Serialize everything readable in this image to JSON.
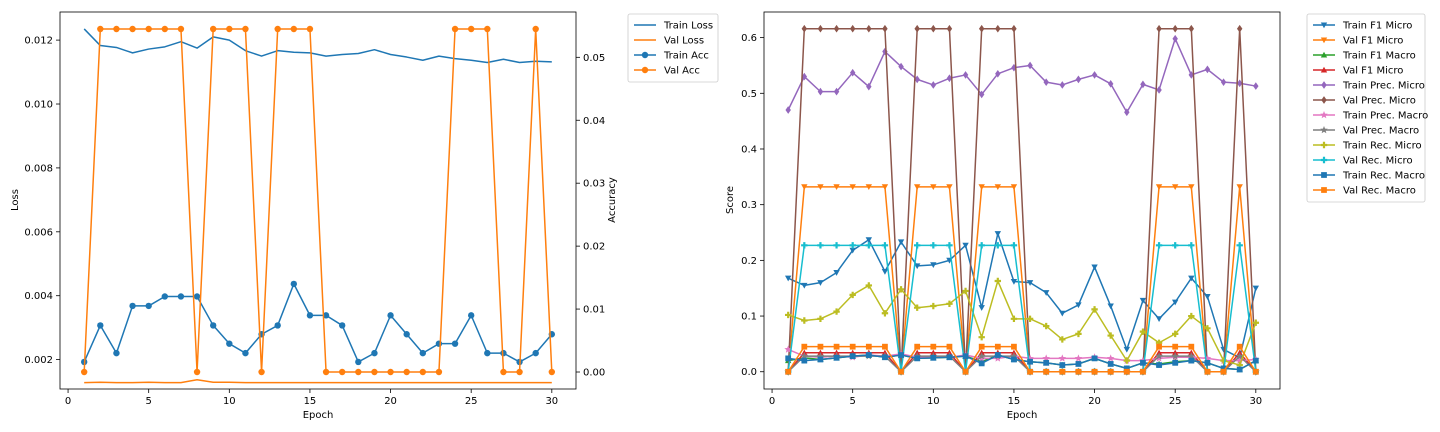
{
  "chart_data": [
    {
      "type": "line",
      "xlabel": "Epoch",
      "ylabel": "Loss",
      "ylabel_right": "Accuracy",
      "xlim": [
        -0.5,
        31.5
      ],
      "ylim": [
        0.00108,
        0.01288
      ],
      "ylim_right": [
        -0.0027,
        0.0572
      ],
      "xticks": [
        0,
        5,
        10,
        15,
        20,
        25,
        30
      ],
      "yticks": [
        0.002,
        0.004,
        0.006,
        0.008,
        0.01,
        0.012
      ],
      "ytick_labels": [
        "0.002",
        "0.004",
        "0.006",
        "0.008",
        "0.010",
        "0.012"
      ],
      "yticks_right": [
        0.0,
        0.01,
        0.02,
        0.03,
        0.04,
        0.05
      ],
      "ytick_labels_right": [
        "0.00",
        "0.01",
        "0.02",
        "0.03",
        "0.04",
        "0.05"
      ],
      "grid": false,
      "legend_placement": "outside-right",
      "x": [
        1,
        2,
        3,
        4,
        5,
        6,
        7,
        8,
        9,
        10,
        11,
        12,
        13,
        14,
        15,
        16,
        17,
        18,
        19,
        20,
        21,
        22,
        23,
        24,
        25,
        26,
        27,
        28,
        29,
        30
      ],
      "series": [
        {
          "name": "Train Loss",
          "axis": "left",
          "color": "#1f77b4",
          "marker": "none",
          "values": [
            0.01235,
            0.01183,
            0.01177,
            0.0116,
            0.01172,
            0.01179,
            0.01195,
            0.01175,
            0.0121,
            0.012,
            0.01167,
            0.0115,
            0.01167,
            0.01162,
            0.0116,
            0.0115,
            0.01155,
            0.01158,
            0.0117,
            0.01155,
            0.01147,
            0.01137,
            0.0115,
            0.01142,
            0.01137,
            0.0113,
            0.0114,
            0.0113,
            0.01134,
            0.01132
          ]
        },
        {
          "name": "Val Loss",
          "axis": "left",
          "color": "#ff7f0e",
          "marker": "none",
          "values": [
            0.00128,
            0.00129,
            0.00128,
            0.00128,
            0.00129,
            0.00128,
            0.00128,
            0.00137,
            0.00129,
            0.00129,
            0.00128,
            0.00128,
            0.00128,
            0.00128,
            0.00128,
            0.00128,
            0.00128,
            0.00128,
            0.00128,
            0.00128,
            0.00128,
            0.00128,
            0.00128,
            0.00128,
            0.00128,
            0.00128,
            0.00128,
            0.00128,
            0.00128,
            0.00128
          ]
        },
        {
          "name": "Train Acc",
          "axis": "right",
          "color": "#1f77b4",
          "marker": "circle",
          "values": [
            0.0016,
            0.0074,
            0.003,
            0.0105,
            0.0105,
            0.012,
            0.012,
            0.012,
            0.0074,
            0.0045,
            0.003,
            0.006,
            0.0074,
            0.014,
            0.009,
            0.009,
            0.0074,
            0.0016,
            0.003,
            0.009,
            0.006,
            0.003,
            0.0045,
            0.0045,
            0.009,
            0.003,
            0.003,
            0.0016,
            0.003,
            0.006
          ]
        },
        {
          "name": "Val Acc",
          "axis": "right",
          "color": "#ff7f0e",
          "marker": "circle",
          "values": [
            0.0,
            0.0545,
            0.0545,
            0.0545,
            0.0545,
            0.0545,
            0.0545,
            0.0,
            0.0545,
            0.0545,
            0.0545,
            0.0,
            0.0545,
            0.0545,
            0.0545,
            0.0,
            0.0,
            0.0,
            0.0,
            0.0,
            0.0,
            0.0,
            0.0,
            0.0545,
            0.0545,
            0.0545,
            0.0,
            0.0,
            0.0545,
            0.0
          ]
        }
      ]
    },
    {
      "type": "line",
      "xlabel": "Epoch",
      "ylabel": "Score",
      "xlim": [
        -0.5,
        31.5
      ],
      "ylim": [
        -0.031,
        0.646
      ],
      "xticks": [
        0,
        5,
        10,
        15,
        20,
        25,
        30
      ],
      "yticks": [
        0.0,
        0.1,
        0.2,
        0.3,
        0.4,
        0.5,
        0.6
      ],
      "ytick_labels": [
        "0.0",
        "0.1",
        "0.2",
        "0.3",
        "0.4",
        "0.5",
        "0.6"
      ],
      "grid": false,
      "legend_placement": "outside-right",
      "x": [
        1,
        2,
        3,
        4,
        5,
        6,
        7,
        8,
        9,
        10,
        11,
        12,
        13,
        14,
        15,
        16,
        17,
        18,
        19,
        20,
        21,
        22,
        23,
        24,
        25,
        26,
        27,
        28,
        29,
        30
      ],
      "series": [
        {
          "name": "Train F1 Micro",
          "color": "#1f77b4",
          "marker": "triangle-down",
          "values": [
            0.168,
            0.155,
            0.16,
            0.178,
            0.218,
            0.237,
            0.18,
            0.233,
            0.19,
            0.192,
            0.2,
            0.227,
            0.115,
            0.248,
            0.162,
            0.16,
            0.142,
            0.105,
            0.12,
            0.188,
            0.118,
            0.04,
            0.128,
            0.095,
            0.125,
            0.168,
            0.135,
            0.04,
            0.025,
            0.15
          ]
        },
        {
          "name": "Val F1 Micro",
          "color": "#ff7f0e",
          "marker": "triangle-down",
          "values": [
            0.0,
            0.332,
            0.332,
            0.332,
            0.332,
            0.332,
            0.332,
            0.0,
            0.332,
            0.332,
            0.332,
            0.0,
            0.332,
            0.332,
            0.332,
            0.0,
            0.0,
            0.0,
            0.0,
            0.0,
            0.0,
            0.0,
            0.0,
            0.332,
            0.332,
            0.332,
            0.0,
            0.0,
            0.332,
            0.0
          ]
        },
        {
          "name": "Train F1 Macro",
          "color": "#2ca02c",
          "marker": "triangle-up",
          "values": [
            0.02,
            0.025,
            0.022,
            0.025,
            0.028,
            0.03,
            0.026,
            0.03,
            0.024,
            0.025,
            0.026,
            0.028,
            0.018,
            0.03,
            0.022,
            0.018,
            0.016,
            0.012,
            0.014,
            0.024,
            0.014,
            0.006,
            0.016,
            0.014,
            0.018,
            0.02,
            0.016,
            0.006,
            0.004,
            0.02
          ]
        },
        {
          "name": "Val F1 Micro",
          "color": "#d62728",
          "marker": "triangle-up",
          "values": [
            0.0,
            0.034,
            0.034,
            0.034,
            0.034,
            0.034,
            0.034,
            0.0,
            0.034,
            0.034,
            0.034,
            0.0,
            0.034,
            0.034,
            0.034,
            0.0,
            0.0,
            0.0,
            0.0,
            0.0,
            0.0,
            0.0,
            0.0,
            0.034,
            0.034,
            0.034,
            0.0,
            0.0,
            0.034,
            0.0
          ]
        },
        {
          "name": "Train Prec. Micro",
          "color": "#9467bd",
          "marker": "diamond",
          "values": [
            0.47,
            0.53,
            0.503,
            0.503,
            0.537,
            0.512,
            0.575,
            0.548,
            0.525,
            0.515,
            0.527,
            0.533,
            0.498,
            0.535,
            0.546,
            0.55,
            0.52,
            0.515,
            0.525,
            0.533,
            0.517,
            0.466,
            0.516,
            0.506,
            0.598,
            0.533,
            0.543,
            0.52,
            0.518,
            0.513
          ]
        },
        {
          "name": "Val Prec. Micro",
          "color": "#8c564b",
          "marker": "diamond",
          "values": [
            0.0,
            0.616,
            0.616,
            0.616,
            0.616,
            0.616,
            0.616,
            0.0,
            0.616,
            0.616,
            0.616,
            0.0,
            0.616,
            0.616,
            0.616,
            0.0,
            0.0,
            0.0,
            0.0,
            0.0,
            0.0,
            0.0,
            0.0,
            0.616,
            0.616,
            0.616,
            0.0,
            0.0,
            0.616,
            0.0
          ]
        },
        {
          "name": "Train Prec. Macro",
          "color": "#e377c2",
          "marker": "star",
          "values": [
            0.04,
            0.028,
            0.026,
            0.028,
            0.026,
            0.03,
            0.028,
            0.032,
            0.026,
            0.026,
            0.026,
            0.03,
            0.024,
            0.024,
            0.028,
            0.024,
            0.024,
            0.024,
            0.024,
            0.026,
            0.024,
            0.02,
            0.02,
            0.024,
            0.026,
            0.026,
            0.024,
            0.02,
            0.02,
            0.022
          ]
        },
        {
          "name": "Val Prec. Macro",
          "color": "#7f7f7f",
          "marker": "star",
          "values": [
            0.0,
            0.028,
            0.028,
            0.028,
            0.028,
            0.028,
            0.028,
            0.0,
            0.028,
            0.028,
            0.028,
            0.0,
            0.028,
            0.028,
            0.028,
            0.0,
            0.0,
            0.0,
            0.0,
            0.0,
            0.0,
            0.0,
            0.0,
            0.028,
            0.028,
            0.028,
            0.0,
            0.0,
            0.028,
            0.0
          ]
        },
        {
          "name": "Train Rec. Micro",
          "color": "#bcbd22",
          "marker": "plus",
          "values": [
            0.102,
            0.092,
            0.095,
            0.108,
            0.138,
            0.155,
            0.105,
            0.148,
            0.115,
            0.118,
            0.122,
            0.145,
            0.062,
            0.163,
            0.095,
            0.095,
            0.082,
            0.058,
            0.068,
            0.112,
            0.065,
            0.02,
            0.072,
            0.052,
            0.068,
            0.1,
            0.078,
            0.02,
            0.012,
            0.088
          ]
        },
        {
          "name": "Val Rec. Micro",
          "color": "#17becf",
          "marker": "plus",
          "values": [
            0.0,
            0.227,
            0.227,
            0.227,
            0.227,
            0.227,
            0.227,
            0.0,
            0.227,
            0.227,
            0.227,
            0.0,
            0.227,
            0.227,
            0.227,
            0.0,
            0.0,
            0.0,
            0.0,
            0.0,
            0.0,
            0.0,
            0.0,
            0.227,
            0.227,
            0.227,
            0.0,
            0.0,
            0.227,
            0.0
          ]
        },
        {
          "name": "Train Rec. Macro",
          "color": "#1f77b4",
          "marker": "square",
          "values": [
            0.024,
            0.02,
            0.022,
            0.025,
            0.028,
            0.03,
            0.026,
            0.03,
            0.024,
            0.025,
            0.026,
            0.028,
            0.015,
            0.03,
            0.022,
            0.018,
            0.016,
            0.012,
            0.014,
            0.024,
            0.014,
            0.006,
            0.016,
            0.012,
            0.016,
            0.02,
            0.016,
            0.006,
            0.004,
            0.02
          ]
        },
        {
          "name": "Val Rec. Macro",
          "color": "#ff7f0e",
          "marker": "square",
          "values": [
            0.0,
            0.045,
            0.045,
            0.045,
            0.045,
            0.045,
            0.045,
            0.0,
            0.045,
            0.045,
            0.045,
            0.0,
            0.045,
            0.045,
            0.045,
            0.0,
            0.0,
            0.0,
            0.0,
            0.0,
            0.0,
            0.0,
            0.0,
            0.045,
            0.045,
            0.045,
            0.0,
            0.0,
            0.045,
            0.0
          ]
        }
      ]
    }
  ]
}
